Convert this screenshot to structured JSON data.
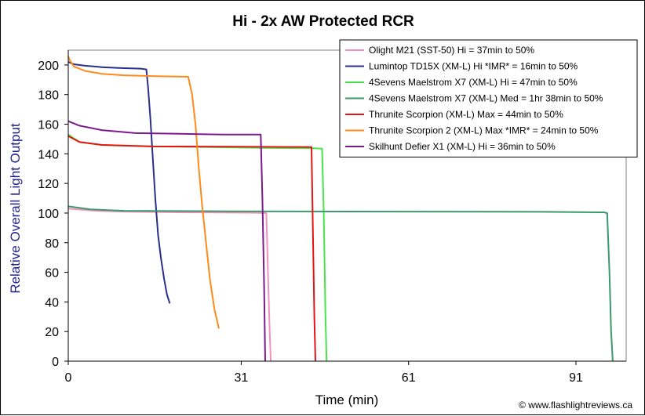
{
  "chart_data": {
    "type": "line",
    "title": "Hi - 2x AW Protected RCR",
    "xlabel": "Time (min)",
    "ylabel": "Relative Overall Light Output",
    "xlim": [
      0,
      100
    ],
    "ylim": [
      0,
      210
    ],
    "x_ticks": [
      0,
      31,
      61,
      91
    ],
    "y_ticks": [
      0,
      20,
      40,
      60,
      80,
      100,
      120,
      140,
      160,
      180,
      200
    ],
    "grid": false,
    "legend_position": "top-right",
    "credit": "© www.flashlightreviews.ca",
    "series": [
      {
        "name": "Olight M21 (SST-50) Hi = 37min to 50%",
        "color": "#f48fc0",
        "points": [
          [
            0,
            103
          ],
          [
            5,
            101.5
          ],
          [
            10,
            101
          ],
          [
            20,
            100.5
          ],
          [
            30,
            100.3
          ],
          [
            34,
            100.2
          ],
          [
            35.5,
            100
          ],
          [
            35.8,
            60
          ],
          [
            36.1,
            20
          ],
          [
            36.3,
            0
          ]
        ]
      },
      {
        "name": "Lumintop TD15X (XM-L) Hi *IMR* = 16min to 50%",
        "color": "#2b2f8c",
        "points": [
          [
            0,
            202
          ],
          [
            1,
            200.5
          ],
          [
            3,
            199.5
          ],
          [
            6,
            198.5
          ],
          [
            9,
            198
          ],
          [
            13,
            197.5
          ],
          [
            14.0,
            197
          ],
          [
            14.3,
            185
          ],
          [
            14.7,
            165
          ],
          [
            15.1,
            140
          ],
          [
            15.6,
            110
          ],
          [
            16.1,
            85
          ],
          [
            16.6,
            70
          ],
          [
            17.2,
            55
          ],
          [
            17.7,
            45
          ],
          [
            18.2,
            39
          ]
        ]
      },
      {
        "name": "4Sevens Maelstrom X7 (XM-L) Hi = 47min to 50%",
        "color": "#4be34b",
        "points": [
          [
            0,
            153
          ],
          [
            2,
            148
          ],
          [
            6,
            146
          ],
          [
            15,
            145
          ],
          [
            25,
            144.5
          ],
          [
            35,
            144
          ],
          [
            44,
            143.7
          ],
          [
            45.5,
            143.5
          ],
          [
            45.8,
            100
          ],
          [
            46.1,
            30
          ],
          [
            46.3,
            0
          ]
        ]
      },
      {
        "name": "4Sevens Maelstrom X7 (XM-L) Med = 1hr 38min to 50%",
        "color": "#3a9a6a",
        "points": [
          [
            0,
            104.5
          ],
          [
            4,
            102.5
          ],
          [
            10,
            101.5
          ],
          [
            30,
            101.2
          ],
          [
            60,
            101
          ],
          [
            85,
            100.8
          ],
          [
            96,
            100.5
          ],
          [
            96.6,
            100
          ],
          [
            97,
            60
          ],
          [
            97.3,
            20
          ],
          [
            97.6,
            0
          ]
        ]
      },
      {
        "name": "Thrunite Scorpion (XM-L) Max = 44min to 50%",
        "color": "#e41414",
        "points": [
          [
            0,
            152
          ],
          [
            2,
            148
          ],
          [
            6,
            146
          ],
          [
            15,
            145
          ],
          [
            30,
            144.8
          ],
          [
            40,
            144.6
          ],
          [
            43.6,
            144.5
          ],
          [
            43.8,
            100
          ],
          [
            44.1,
            30
          ],
          [
            44.3,
            0
          ]
        ]
      },
      {
        "name": "Thrunite Scorpion 2 (XM-L) Max *IMR* = 24min to 50%",
        "color": "#ff8a1c",
        "points": [
          [
            0,
            206
          ],
          [
            0.3,
            203
          ],
          [
            1,
            199
          ],
          [
            3,
            196
          ],
          [
            6,
            194
          ],
          [
            10,
            193
          ],
          [
            15,
            192.5
          ],
          [
            21.5,
            192
          ],
          [
            22.2,
            180
          ],
          [
            22.8,
            160
          ],
          [
            23.4,
            130
          ],
          [
            24,
            105
          ],
          [
            24.7,
            80
          ],
          [
            25.4,
            55
          ],
          [
            26.2,
            35
          ],
          [
            27,
            22
          ]
        ]
      },
      {
        "name": "Skilhunt Defier X1 (XM-L) Hi = 36min to 50%",
        "color": "#7c1a8e",
        "points": [
          [
            0,
            162
          ],
          [
            2,
            159
          ],
          [
            6,
            156
          ],
          [
            12,
            154
          ],
          [
            20,
            153.5
          ],
          [
            28,
            153
          ],
          [
            34.5,
            153
          ],
          [
            34.8,
            110
          ],
          [
            35.1,
            50
          ],
          [
            35.3,
            0
          ]
        ]
      }
    ]
  }
}
